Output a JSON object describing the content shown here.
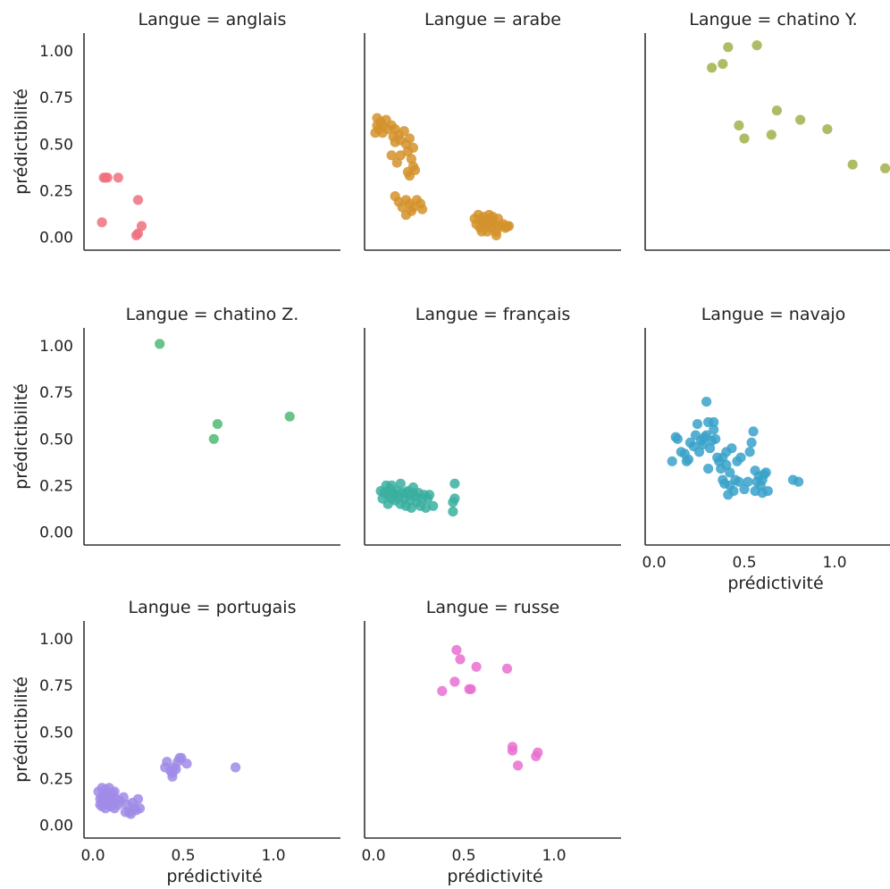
{
  "chart_data": {
    "type": "scatter",
    "facet_var": "Langue",
    "xlabel": "prédictivité",
    "ylabel": "prédictibilité",
    "xlim": [
      -0.05,
      1.32
    ],
    "ylim": [
      -0.05,
      1.1
    ],
    "xticks": [
      "0.0",
      "0.5",
      "1.0"
    ],
    "yticks": [
      "0.00",
      "0.25",
      "0.50",
      "0.75",
      "1.00"
    ],
    "grid": false,
    "facets": [
      {
        "title": "Langue = anglais",
        "color": "#f0707f",
        "points": [
          [
            0.06,
            0.32
          ],
          [
            0.07,
            0.32
          ],
          [
            0.08,
            0.32
          ],
          [
            0.14,
            0.32
          ],
          [
            0.05,
            0.08
          ],
          [
            0.25,
            0.2
          ],
          [
            0.27,
            0.06
          ],
          [
            0.24,
            0.01
          ],
          [
            0.25,
            0.02
          ]
        ]
      },
      {
        "title": "Langue = arabe",
        "color": "#d4922c",
        "points": [
          [
            0.01,
            0.56
          ],
          [
            0.02,
            0.6
          ],
          [
            0.02,
            0.64
          ],
          [
            0.03,
            0.58
          ],
          [
            0.04,
            0.62
          ],
          [
            0.05,
            0.56
          ],
          [
            0.05,
            0.6
          ],
          [
            0.07,
            0.63
          ],
          [
            0.08,
            0.58
          ],
          [
            0.1,
            0.6
          ],
          [
            0.11,
            0.54
          ],
          [
            0.12,
            0.58
          ],
          [
            0.14,
            0.55
          ],
          [
            0.12,
            0.51
          ],
          [
            0.15,
            0.52
          ],
          [
            0.17,
            0.57
          ],
          [
            0.18,
            0.5
          ],
          [
            0.19,
            0.46
          ],
          [
            0.2,
            0.53
          ],
          [
            0.22,
            0.48
          ],
          [
            0.21,
            0.42
          ],
          [
            0.22,
            0.38
          ],
          [
            0.1,
            0.44
          ],
          [
            0.13,
            0.4
          ],
          [
            0.15,
            0.44
          ],
          [
            0.19,
            0.35
          ],
          [
            0.2,
            0.33
          ],
          [
            0.23,
            0.36
          ],
          [
            0.12,
            0.22
          ],
          [
            0.14,
            0.19
          ],
          [
            0.16,
            0.16
          ],
          [
            0.18,
            0.2
          ],
          [
            0.2,
            0.18
          ],
          [
            0.22,
            0.16
          ],
          [
            0.24,
            0.2
          ],
          [
            0.26,
            0.18
          ],
          [
            0.27,
            0.15
          ],
          [
            0.18,
            0.12
          ],
          [
            0.21,
            0.14
          ],
          [
            0.56,
            0.1
          ],
          [
            0.57,
            0.07
          ],
          [
            0.58,
            0.12
          ],
          [
            0.59,
            0.05
          ],
          [
            0.6,
            0.09
          ],
          [
            0.61,
            0.11
          ],
          [
            0.62,
            0.06
          ],
          [
            0.63,
            0.08
          ],
          [
            0.64,
            0.12
          ],
          [
            0.65,
            0.05
          ],
          [
            0.66,
            0.09
          ],
          [
            0.67,
            0.07
          ],
          [
            0.68,
            0.03
          ],
          [
            0.69,
            0.1
          ],
          [
            0.7,
            0.06
          ],
          [
            0.72,
            0.07
          ],
          [
            0.73,
            0.05
          ],
          [
            0.74,
            0.06
          ],
          [
            0.75,
            0.06
          ],
          [
            0.68,
            0.01
          ],
          [
            0.6,
            0.03
          ],
          [
            0.63,
            0.03
          ],
          [
            0.66,
            0.11
          ],
          [
            0.61,
            0.08
          ]
        ]
      },
      {
        "title": "Langue = chatino Y.",
        "color": "#a2b04a",
        "points": [
          [
            0.32,
            0.91
          ],
          [
            0.38,
            0.93
          ],
          [
            0.41,
            1.02
          ],
          [
            0.57,
            1.03
          ],
          [
            0.47,
            0.6
          ],
          [
            0.5,
            0.53
          ],
          [
            0.65,
            0.55
          ],
          [
            0.68,
            0.68
          ],
          [
            0.81,
            0.63
          ],
          [
            0.96,
            0.58
          ],
          [
            1.1,
            0.39
          ],
          [
            1.28,
            0.37
          ]
        ]
      },
      {
        "title": "Langue = chatino Z.",
        "color": "#4ebb72",
        "points": [
          [
            0.37,
            1.01
          ],
          [
            0.67,
            0.5
          ],
          [
            0.69,
            0.58
          ],
          [
            1.09,
            0.62
          ]
        ]
      },
      {
        "title": "Langue = français",
        "color": "#3aafa0",
        "points": [
          [
            0.04,
            0.22
          ],
          [
            0.05,
            0.18
          ],
          [
            0.06,
            0.21
          ],
          [
            0.07,
            0.25
          ],
          [
            0.08,
            0.2
          ],
          [
            0.08,
            0.15
          ],
          [
            0.09,
            0.23
          ],
          [
            0.1,
            0.18
          ],
          [
            0.1,
            0.25
          ],
          [
            0.11,
            0.21
          ],
          [
            0.12,
            0.17
          ],
          [
            0.13,
            0.22
          ],
          [
            0.14,
            0.19
          ],
          [
            0.15,
            0.26
          ],
          [
            0.15,
            0.15
          ],
          [
            0.16,
            0.21
          ],
          [
            0.17,
            0.18
          ],
          [
            0.18,
            0.14
          ],
          [
            0.19,
            0.22
          ],
          [
            0.2,
            0.2
          ],
          [
            0.2,
            0.17
          ],
          [
            0.21,
            0.13
          ],
          [
            0.22,
            0.21
          ],
          [
            0.23,
            0.19
          ],
          [
            0.24,
            0.16
          ],
          [
            0.25,
            0.21
          ],
          [
            0.26,
            0.14
          ],
          [
            0.27,
            0.18
          ],
          [
            0.28,
            0.2
          ],
          [
            0.29,
            0.13
          ],
          [
            0.3,
            0.18
          ],
          [
            0.31,
            0.2
          ],
          [
            0.12,
            0.2
          ],
          [
            0.18,
            0.21
          ],
          [
            0.22,
            0.24
          ],
          [
            0.45,
            0.26
          ],
          [
            0.45,
            0.18
          ],
          [
            0.44,
            0.16
          ],
          [
            0.44,
            0.11
          ],
          [
            0.33,
            0.14
          ]
        ]
      },
      {
        "title": "Langue = navajo",
        "color": "#39a2c9",
        "points": [
          [
            0.1,
            0.38
          ],
          [
            0.12,
            0.51
          ],
          [
            0.13,
            0.5
          ],
          [
            0.15,
            0.43
          ],
          [
            0.17,
            0.42
          ],
          [
            0.18,
            0.38
          ],
          [
            0.19,
            0.39
          ],
          [
            0.2,
            0.48
          ],
          [
            0.22,
            0.46
          ],
          [
            0.23,
            0.52
          ],
          [
            0.24,
            0.58
          ],
          [
            0.25,
            0.43
          ],
          [
            0.26,
            0.49
          ],
          [
            0.27,
            0.47
          ],
          [
            0.28,
            0.51
          ],
          [
            0.29,
            0.52
          ],
          [
            0.29,
            0.7
          ],
          [
            0.3,
            0.59
          ],
          [
            0.3,
            0.34
          ],
          [
            0.31,
            0.45
          ],
          [
            0.32,
            0.49
          ],
          [
            0.33,
            0.59
          ],
          [
            0.33,
            0.55
          ],
          [
            0.34,
            0.5
          ],
          [
            0.35,
            0.4
          ],
          [
            0.36,
            0.38
          ],
          [
            0.37,
            0.34
          ],
          [
            0.38,
            0.28
          ],
          [
            0.38,
            0.4
          ],
          [
            0.39,
            0.26
          ],
          [
            0.4,
            0.43
          ],
          [
            0.4,
            0.36
          ],
          [
            0.41,
            0.2
          ],
          [
            0.42,
            0.32
          ],
          [
            0.42,
            0.25
          ],
          [
            0.43,
            0.45
          ],
          [
            0.44,
            0.22
          ],
          [
            0.45,
            0.28
          ],
          [
            0.46,
            0.38
          ],
          [
            0.47,
            0.27
          ],
          [
            0.48,
            0.4
          ],
          [
            0.5,
            0.23
          ],
          [
            0.52,
            0.27
          ],
          [
            0.53,
            0.43
          ],
          [
            0.54,
            0.48
          ],
          [
            0.55,
            0.54
          ],
          [
            0.56,
            0.33
          ],
          [
            0.56,
            0.22
          ],
          [
            0.57,
            0.27
          ],
          [
            0.58,
            0.3
          ],
          [
            0.59,
            0.25
          ],
          [
            0.6,
            0.21
          ],
          [
            0.6,
            0.28
          ],
          [
            0.61,
            0.31
          ],
          [
            0.62,
            0.32
          ],
          [
            0.63,
            0.22
          ],
          [
            0.77,
            0.28
          ],
          [
            0.8,
            0.27
          ]
        ]
      },
      {
        "title": "Langue = portugais",
        "color": "#a08be8",
        "points": [
          [
            0.03,
            0.18
          ],
          [
            0.04,
            0.14
          ],
          [
            0.04,
            0.11
          ],
          [
            0.05,
            0.2
          ],
          [
            0.05,
            0.15
          ],
          [
            0.06,
            0.12
          ],
          [
            0.06,
            0.17
          ],
          [
            0.07,
            0.19
          ],
          [
            0.07,
            0.09
          ],
          [
            0.08,
            0.14
          ],
          [
            0.08,
            0.11
          ],
          [
            0.09,
            0.16
          ],
          [
            0.09,
            0.2
          ],
          [
            0.1,
            0.13
          ],
          [
            0.1,
            0.1
          ],
          [
            0.11,
            0.17
          ],
          [
            0.11,
            0.12
          ],
          [
            0.12,
            0.18
          ],
          [
            0.12,
            0.09
          ],
          [
            0.13,
            0.14
          ],
          [
            0.14,
            0.11
          ],
          [
            0.15,
            0.13
          ],
          [
            0.17,
            0.15
          ],
          [
            0.18,
            0.07
          ],
          [
            0.19,
            0.11
          ],
          [
            0.2,
            0.07
          ],
          [
            0.21,
            0.06
          ],
          [
            0.22,
            0.12
          ],
          [
            0.23,
            0.09
          ],
          [
            0.24,
            0.08
          ],
          [
            0.25,
            0.14
          ],
          [
            0.26,
            0.09
          ],
          [
            0.06,
            0.14
          ],
          [
            0.08,
            0.13
          ],
          [
            0.1,
            0.15
          ],
          [
            0.05,
            0.1
          ],
          [
            0.4,
            0.31
          ],
          [
            0.41,
            0.34
          ],
          [
            0.43,
            0.29
          ],
          [
            0.44,
            0.26
          ],
          [
            0.45,
            0.31
          ],
          [
            0.46,
            0.3
          ],
          [
            0.47,
            0.34
          ],
          [
            0.48,
            0.36
          ],
          [
            0.49,
            0.36
          ],
          [
            0.52,
            0.33
          ],
          [
            0.44,
            0.28
          ],
          [
            0.79,
            0.31
          ]
        ]
      },
      {
        "title": "Langue = russe",
        "color": "#e96ed0",
        "points": [
          [
            0.38,
            0.72
          ],
          [
            0.45,
            0.77
          ],
          [
            0.46,
            0.94
          ],
          [
            0.48,
            0.89
          ],
          [
            0.53,
            0.73
          ],
          [
            0.54,
            0.73
          ],
          [
            0.57,
            0.85
          ],
          [
            0.74,
            0.84
          ],
          [
            0.77,
            0.42
          ],
          [
            0.77,
            0.4
          ],
          [
            0.8,
            0.32
          ],
          [
            0.9,
            0.37
          ],
          [
            0.91,
            0.39
          ]
        ]
      }
    ]
  }
}
